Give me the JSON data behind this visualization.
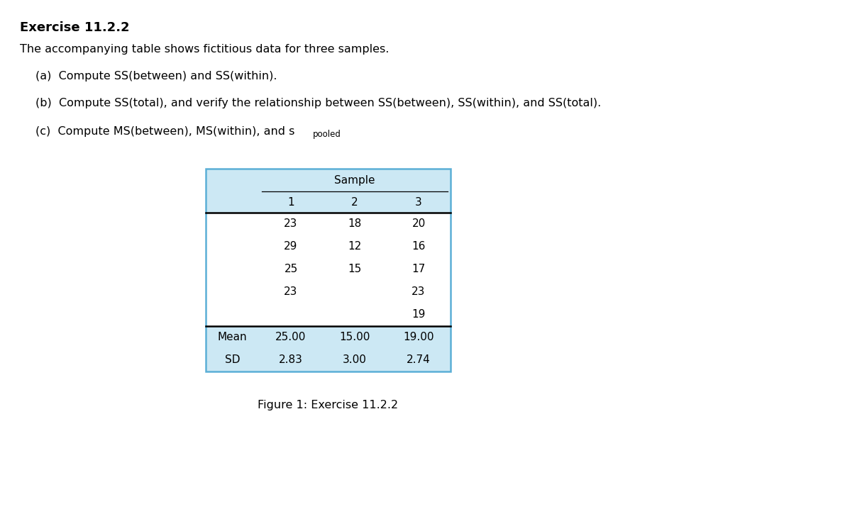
{
  "title": "Exercise 11.2.2",
  "intro_text": "The accompanying table shows fictitious data for three samples.",
  "item_a": "(a)  Compute SS(between) and SS(within).",
  "item_b": "(b)  Compute SS(total), and verify the relationship between SS(between), SS(within), and SS(total).",
  "item_c_main": "(c)  Compute MS(between), MS(within), and s",
  "item_c_sub": "pooled",
  "sample_header": "Sample",
  "col_headers": [
    "1",
    "2",
    "3"
  ],
  "data_rows": [
    [
      "23",
      "18",
      "20"
    ],
    [
      "29",
      "12",
      "16"
    ],
    [
      "25",
      "15",
      "17"
    ],
    [
      "23",
      "",
      "23"
    ],
    [
      "",
      "",
      "19"
    ]
  ],
  "stat_rows": [
    [
      "Mean",
      "25.00",
      "15.00",
      "19.00"
    ],
    [
      "SD",
      "2.83",
      "3.00",
      "2.74"
    ]
  ],
  "figure_caption": "Figure 1: Exercise 11.2.2",
  "header_bg": "#cce8f4",
  "table_border_color": "#5bafd6",
  "background_color": "#ffffff",
  "text_color": "#000000",
  "font_size_title": 13,
  "font_size_body": 11.5,
  "font_size_table": 11
}
